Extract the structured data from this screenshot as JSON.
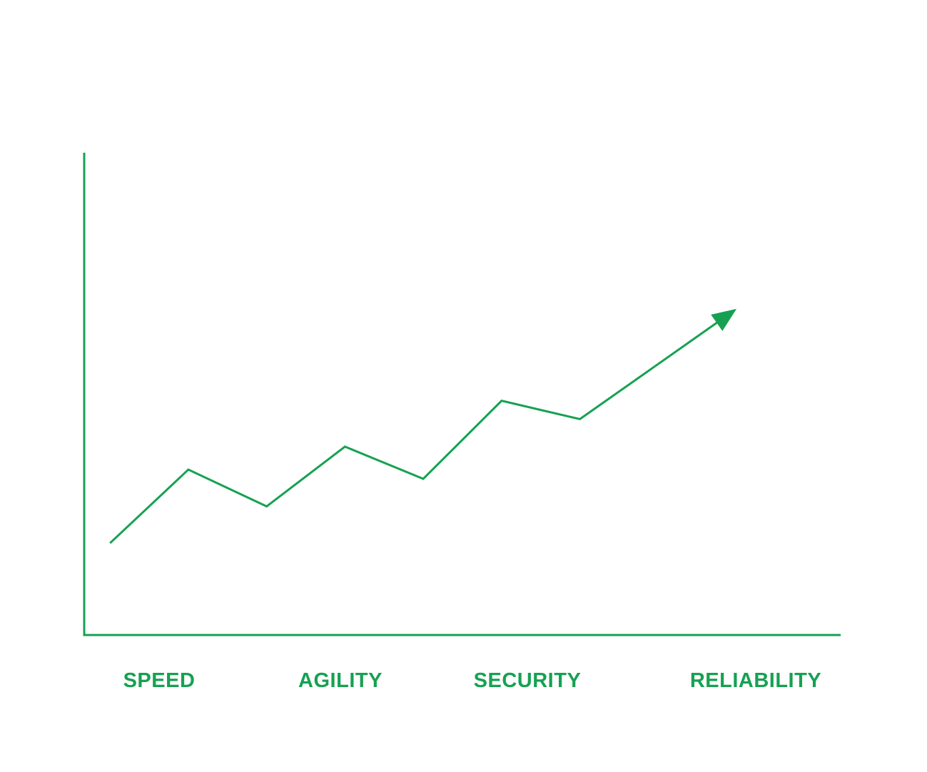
{
  "chart_data": {
    "type": "line",
    "title": "",
    "xlabel": "",
    "ylabel": "",
    "categories": [
      "SPEED",
      "AGILITY",
      "SECURITY",
      "RELIABILITY"
    ],
    "x": [
      0,
      1,
      2,
      3,
      4,
      5,
      6,
      7,
      8
    ],
    "series": [
      {
        "values": [
          20,
          36,
          28,
          41,
          34,
          51,
          47,
          59,
          71
        ]
      }
    ],
    "ylim": [
      0,
      105
    ],
    "xlim": [
      -0.33,
      9.33
    ],
    "grid": false,
    "legend": "none",
    "end_marker": "arrow",
    "colors": {
      "line": "#16a152",
      "axes": "#16a152",
      "labels": "#16a152"
    }
  }
}
